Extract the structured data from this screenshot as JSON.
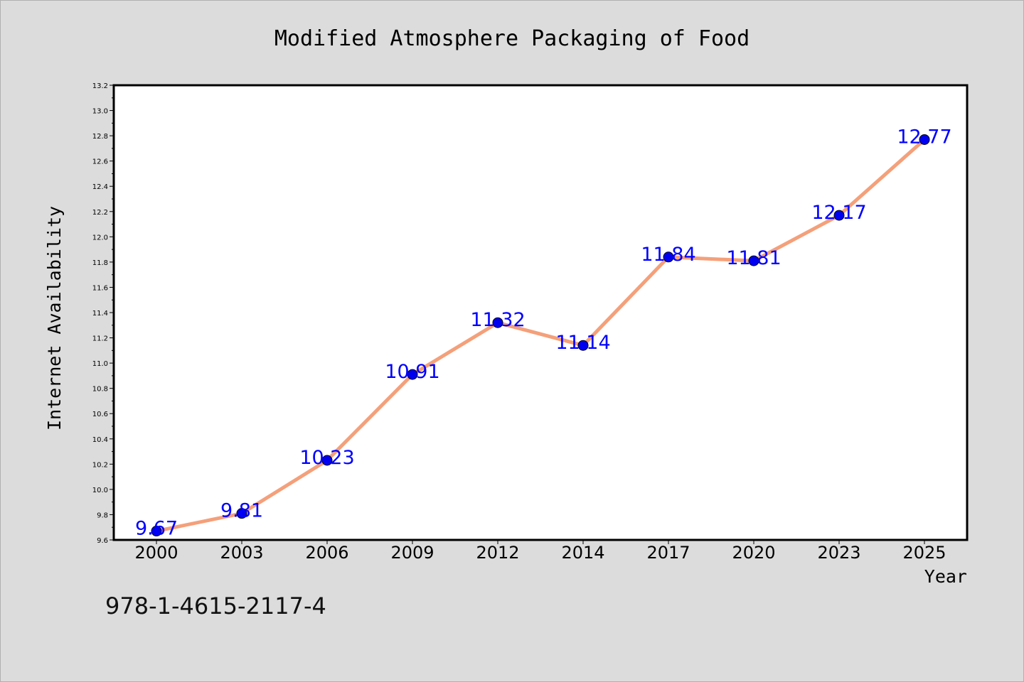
{
  "chart_data": {
    "type": "line",
    "title": "Modified Atmosphere Packaging of Food",
    "xlabel": "Year",
    "ylabel": "Internet Availability",
    "categories": [
      "2000",
      "2003",
      "2006",
      "2009",
      "2012",
      "2014",
      "2017",
      "2020",
      "2023",
      "2025"
    ],
    "series": [
      {
        "values": [
          9.67,
          9.81,
          10.23,
          10.91,
          11.32,
          11.14,
          11.84,
          11.81,
          12.17,
          12.77
        ]
      }
    ],
    "data_labels": [
      "9.67",
      "9.81",
      "10.23",
      "10.91",
      "11.32",
      "11.14",
      "11.84",
      "11.81",
      "12.17",
      "12.77"
    ],
    "ylim": [
      9.6,
      13.2
    ],
    "yticks": [
      "9.6",
      "9.8",
      "10.0",
      "10.2",
      "10.4",
      "10.6",
      "10.8",
      "11.0",
      "11.2",
      "11.4",
      "11.6",
      "11.8",
      "12.0",
      "12.2",
      "12.4",
      "12.6",
      "12.8",
      "13.0",
      "13.2"
    ],
    "grid": false,
    "line_color": "#f4a07a",
    "marker_color": "#0000ee",
    "label_color": "#0000ff",
    "background_color": "#dcdcdc",
    "plot_background": "#ffffff"
  },
  "footnote": "978-1-4615-2117-4"
}
